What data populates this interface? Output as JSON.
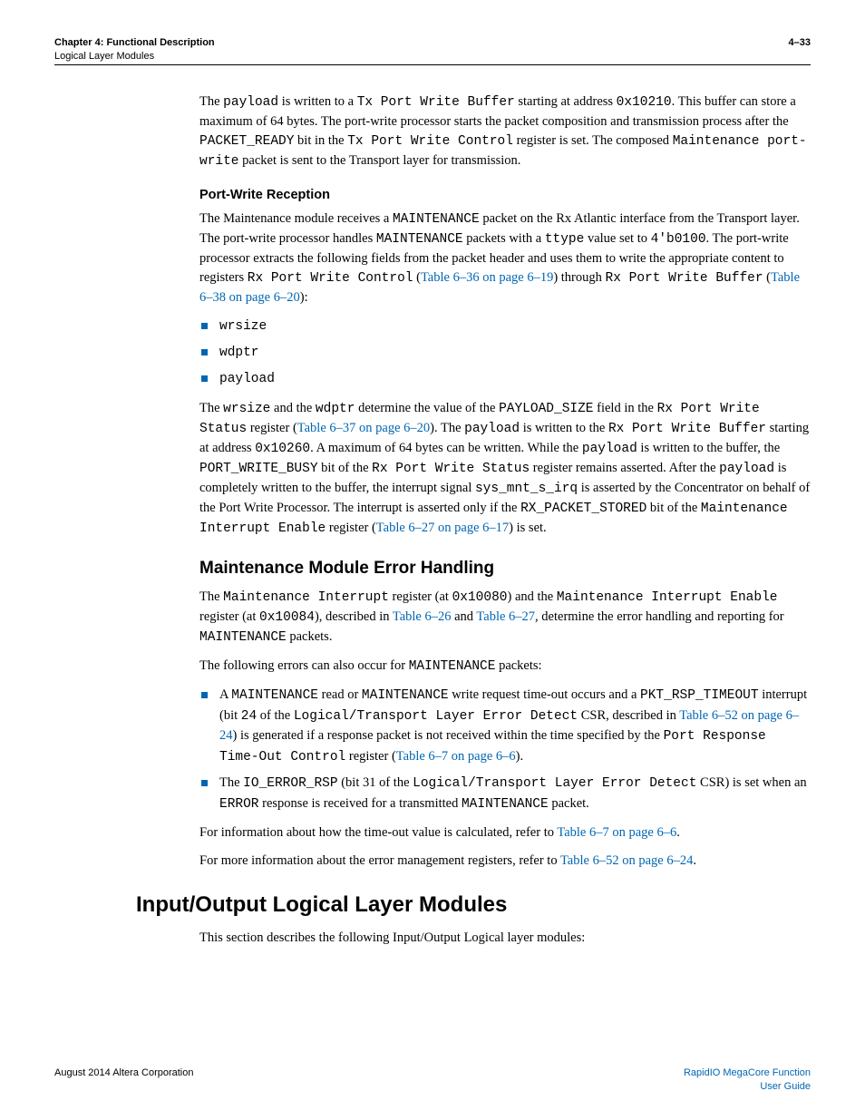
{
  "header": {
    "chapter": "Chapter 4:  Functional Description",
    "pagenum": "4–33",
    "section": "Logical Layer Modules"
  },
  "p1": {
    "t1": "The ",
    "c1": "payload",
    "t2": " is written to a ",
    "c2": "Tx Port Write Buffer",
    "t3": " starting at address ",
    "c3": "0x10210",
    "t4": ". This buffer can store a maximum of 64 bytes. The port-write processor starts the packet composition and transmission process after the ",
    "c4": "PACKET_READY",
    "t5": " bit in the ",
    "c5": "Tx Port Write Control",
    "t6": " register is set. The composed ",
    "c6": "Maintenance port-write",
    "t7": " packet is sent to the Transport layer for transmission."
  },
  "h3a": "Port-Write Reception",
  "p2": {
    "t1": "The Maintenance module receives a ",
    "c1": "MAINTENANCE",
    "t2": " packet on the Rx Atlantic interface from the Transport layer. The port-write processor handles ",
    "c2": "MAINTENANCE",
    "t3": " packets with a ",
    "c3": "ttype",
    "t4": " value set to ",
    "c4": "4'b0100",
    "t5": ". The port-write processor extracts the following fields from the packet header and uses them to write the appropriate content to registers ",
    "c5": "Rx Port Write Control",
    "t6": " (",
    "l1": "Table 6–36 on page 6–19",
    "t7": ") through ",
    "c6": "Rx Port Write Buffer",
    "t8": " (",
    "l2": "Table 6–38 on page 6–20",
    "t9": "):"
  },
  "list1": {
    "a": "wrsize",
    "b": "wdptr",
    "c": "payload"
  },
  "p3": {
    "t1": "The ",
    "c1": "wrsize",
    "t2": " and the ",
    "c2": "wdptr",
    "t3": " determine the value of the ",
    "c3": "PAYLOAD_SIZE",
    "t4": " field in the ",
    "c4": "Rx Port Write Status",
    "t5": " register (",
    "l1": "Table 6–37 on page 6–20",
    "t6": "). The ",
    "c5": "payload",
    "t7": " is written to the ",
    "c6": "Rx Port Write Buffer",
    "t8": " starting at address ",
    "c7": "0x10260",
    "t9": ". A maximum of 64 bytes can be written. While the ",
    "c8": "payload",
    "t10": " is written to the buffer, the ",
    "c9": "PORT_WRITE_BUSY",
    "t11": " bit of the ",
    "c10": "Rx Port Write Status",
    "t12": " register remains asserted. After the ",
    "c11": "payload",
    "t13": " is completely written to the buffer, the interrupt signal ",
    "c12": "sys_mnt_s_irq",
    "t14": " is asserted by the Concentrator on behalf of the Port Write Processor. The interrupt is asserted only if the ",
    "c13": "RX_PACKET_STORED",
    "t15": " bit of the ",
    "c14": "Maintenance Interrupt Enable",
    "t16": " register (",
    "l2": "Table 6–27 on page 6–17",
    "t17": ") is set."
  },
  "h2a": "Maintenance Module Error Handling",
  "p4": {
    "t1": "The ",
    "c1": "Maintenance Interrupt",
    "t2": " register (at ",
    "c2": "0x10080",
    "t3": ") and the ",
    "c3": "Maintenance Interrupt Enable",
    "t4": " register (at ",
    "c4": "0x10084",
    "t5": "), described in ",
    "l1": "Table 6–26",
    "t6": " and ",
    "l2": "Table 6–27",
    "t7": ", determine the error handling and reporting for ",
    "c5": "MAINTENANCE",
    "t8": " packets."
  },
  "p5": {
    "t1": "The following errors can also occur for ",
    "c1": "MAINTENANCE",
    "t2": " packets:"
  },
  "list2a": {
    "t1": "A ",
    "c1": "MAINTENANCE",
    "t2": " read or ",
    "c2": "MAINTENANCE",
    "t3": " write request time-out occurs and a ",
    "c3": "PKT_RSP_TIMEOUT",
    "t4": " interrupt (bit ",
    "c4": "24",
    "t5": " of the ",
    "c5": "Logical/Transport Layer Error Detect",
    "t6": " CSR, described in ",
    "l1": "Table 6–52 on page 6–24",
    "t7": ") is generated if a response packet is not received within the time specified by the ",
    "c6": "Port Response Time-Out Control",
    "t8": " register (",
    "l2": "Table 6–7 on page 6–6",
    "t9": ")."
  },
  "list2b": {
    "t1": "The ",
    "c1": "IO_ERROR_RSP",
    "t2": " (bit 31 of the ",
    "c2": "Logical/Transport Layer Error Detect",
    "t3": " CSR) is set when an ",
    "c3": "ERROR",
    "t4": " response is received for a transmitted ",
    "c4": "MAINTENANCE",
    "t5": " packet."
  },
  "p6": {
    "t1": "For information about how the time-out value is calculated, refer to ",
    "l1": "Table 6–7 on page 6–6",
    "t2": "."
  },
  "p7": {
    "t1": "For more information about the error management registers, refer to ",
    "l1": "Table 6–52 on page 6–24",
    "t2": "."
  },
  "h1a": "Input/Output Logical Layer Modules",
  "p8": "This section describes the following Input/Output Logical layer modules:",
  "footer": {
    "left": "August 2014   Altera Corporation",
    "right1": "RapidIO MegaCore Function",
    "right2": "User Guide"
  }
}
